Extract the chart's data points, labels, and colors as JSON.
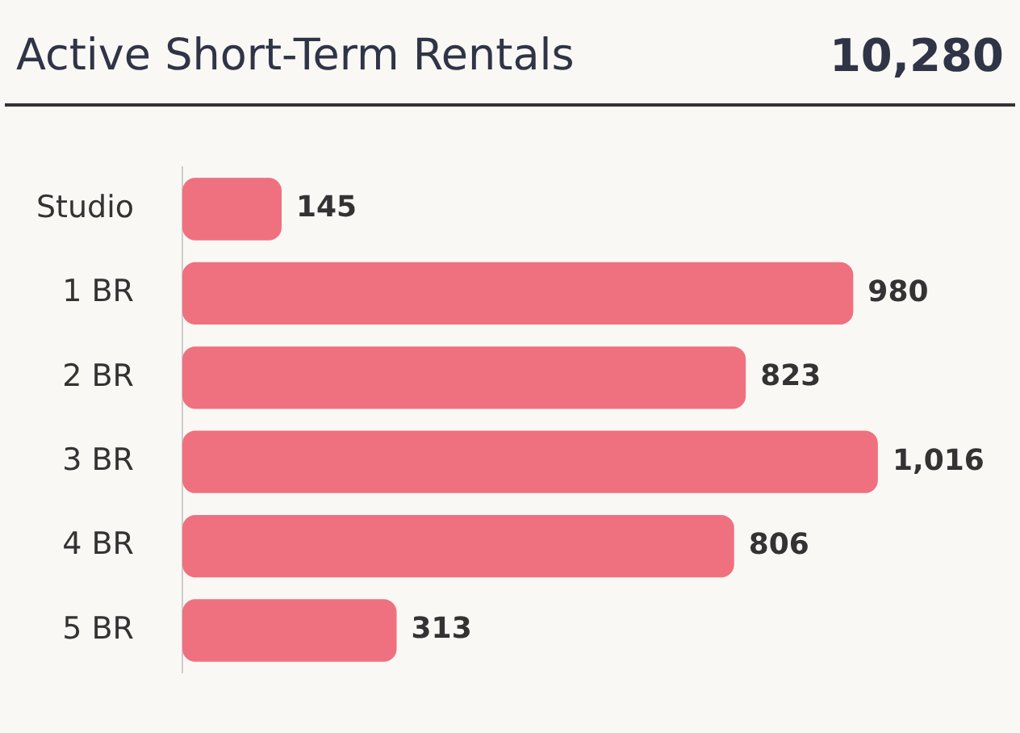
{
  "chart_data": {
    "type": "bar",
    "orientation": "horizontal",
    "title": "Active Short-Term Rentals",
    "annotations": [
      "10,280"
    ],
    "categories": [
      "Studio",
      "1 BR",
      "2 BR",
      "3 BR",
      "4 BR",
      "5 BR"
    ],
    "values": [
      145,
      980,
      823,
      1016,
      806,
      313
    ],
    "value_labels": [
      "145",
      "980",
      "823",
      "1,016",
      "806",
      "313"
    ],
    "color": "#ef717f",
    "grid": false,
    "legend": false
  }
}
